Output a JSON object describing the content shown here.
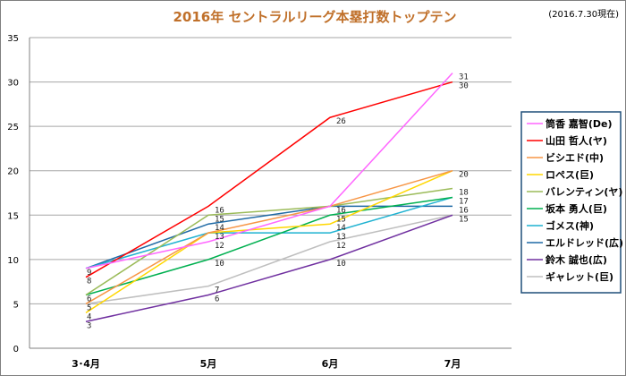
{
  "chart_data": {
    "type": "line",
    "title": "2016年 セントラルリーグ本塁打数トップテン",
    "as_of": "(2016.7.30現在)",
    "categories": [
      "3･4月",
      "5月",
      "6月",
      "7月"
    ],
    "ylim": [
      0,
      35
    ],
    "yticks": [
      0,
      5,
      10,
      15,
      20,
      25,
      30,
      35
    ],
    "grid": true,
    "legend_position": "right",
    "series": [
      {
        "name": "筒香 嘉智(De)",
        "color": "#ff66ff",
        "values": [
          9,
          12,
          16,
          31
        ],
        "labels": [
          "9",
          "12",
          "",
          "31"
        ]
      },
      {
        "name": "山田 哲人(ヤ)",
        "color": "#ff0000",
        "values": [
          8,
          16,
          26,
          30
        ],
        "labels": [
          "8",
          "16",
          "26",
          "30"
        ]
      },
      {
        "name": "ビシエド(中)",
        "color": "#f79646",
        "values": [
          5,
          13,
          16,
          20
        ],
        "labels": [
          "",
          "",
          "",
          ""
        ]
      },
      {
        "name": "ロペス(巨)",
        "color": "#ffd700",
        "values": [
          4,
          13,
          14,
          20
        ],
        "labels": [
          "4",
          "",
          "14",
          "20"
        ]
      },
      {
        "name": "バレンティン(ヤ)",
        "color": "#9bbb59",
        "values": [
          6,
          15,
          16,
          18
        ],
        "labels": [
          "",
          "15",
          "",
          "18"
        ]
      },
      {
        "name": "坂本 勇人(巨)",
        "color": "#00b050",
        "values": [
          6,
          10,
          15,
          17
        ],
        "labels": [
          "6",
          "10",
          "15",
          ""
        ]
      },
      {
        "name": "ゴメス(神)",
        "color": "#1fb2d1",
        "values": [
          9,
          13,
          13,
          17
        ],
        "labels": [
          "",
          "13",
          "13",
          "17"
        ]
      },
      {
        "name": "エルドレッド(広)",
        "color": "#1f6aa5",
        "values": [
          9,
          14,
          16,
          16
        ],
        "labels": [
          "",
          "14",
          "16",
          "16"
        ]
      },
      {
        "name": "鈴木 誠也(広)",
        "color": "#7030a0",
        "values": [
          3,
          6,
          10,
          15
        ],
        "labels": [
          "3",
          "6",
          "10",
          "15"
        ]
      },
      {
        "name": "ギャレット(巨)",
        "color": "#bfbfbf",
        "values": [
          5,
          7,
          12,
          15
        ],
        "labels": [
          "5",
          "7",
          "12",
          ""
        ]
      }
    ]
  }
}
